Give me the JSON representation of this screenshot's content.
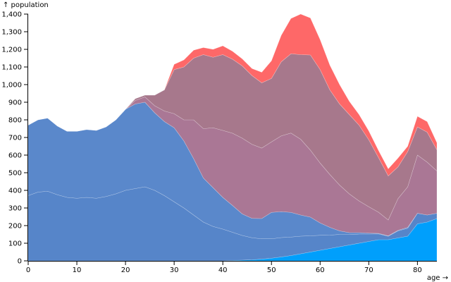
{
  "chart_data": {
    "type": "area",
    "stacked": true,
    "xlabel": "age →",
    "ylabel": "↑ population",
    "xlim": [
      0,
      84
    ],
    "ylim": [
      0,
      1400
    ],
    "x_ticks": [
      0,
      10,
      20,
      30,
      40,
      50,
      60,
      70,
      80
    ],
    "y_ticks": [
      0,
      100,
      200,
      300,
      400,
      500,
      600,
      700,
      800,
      900,
      1000,
      1100,
      1200,
      1300,
      1400
    ],
    "y_tick_labels": [
      "0",
      "100",
      "200",
      "300",
      "400",
      "500",
      "600",
      "700",
      "800",
      "900",
      "1,000",
      "1,100",
      "1,200",
      "1,300",
      "1,400"
    ],
    "x": [
      0,
      2,
      4,
      6,
      8,
      10,
      12,
      14,
      16,
      18,
      20,
      22,
      24,
      26,
      28,
      30,
      32,
      34,
      36,
      38,
      40,
      42,
      44,
      46,
      48,
      50,
      52,
      54,
      56,
      58,
      60,
      62,
      64,
      66,
      68,
      70,
      72,
      74,
      76,
      78,
      80,
      82,
      84
    ],
    "series": [
      {
        "color": "#009ffc",
        "values": [
          0,
          0,
          0,
          0,
          0,
          0,
          0,
          0,
          0,
          0,
          0,
          0,
          0,
          0,
          0,
          0,
          0,
          0,
          0,
          0,
          0,
          2,
          4,
          6,
          10,
          15,
          22,
          30,
          40,
          50,
          60,
          70,
          80,
          90,
          100,
          110,
          120,
          120,
          130,
          140,
          210,
          220,
          240
        ]
      },
      {
        "color": "#5685c9",
        "values": [
          370,
          390,
          395,
          375,
          360,
          355,
          360,
          355,
          365,
          380,
          400,
          410,
          420,
          400,
          370,
          335,
          300,
          260,
          220,
          195,
          180,
          160,
          140,
          125,
          115,
          110,
          110,
          105,
          100,
          92,
          85,
          76,
          70,
          60,
          52,
          42,
          33,
          20,
          40,
          45,
          60,
          40,
          30
        ]
      },
      {
        "color": "#5a88cb",
        "values": [
          400,
          410,
          415,
          390,
          375,
          380,
          385,
          385,
          395,
          420,
          460,
          480,
          480,
          440,
          420,
          420,
          380,
          320,
          250,
          220,
          180,
          152,
          122,
          110,
          115,
          150,
          147,
          140,
          120,
          106,
          70,
          44,
          20,
          10,
          8,
          5,
          3,
          2,
          3,
          5,
          0,
          0,
          0
        ]
      },
      {
        "color": "#aa7795",
        "values": [
          0,
          0,
          0,
          0,
          0,
          0,
          0,
          0,
          0,
          0,
          0,
          20,
          30,
          40,
          60,
          80,
          120,
          220,
          280,
          340,
          380,
          410,
          430,
          420,
          400,
          400,
          430,
          450,
          430,
          380,
          340,
          300,
          260,
          220,
          180,
          150,
          120,
          90,
          180,
          230,
          330,
          300,
          240
        ]
      },
      {
        "color": "#a7788c",
        "values": [
          0,
          0,
          0,
          0,
          0,
          0,
          0,
          0,
          0,
          0,
          0,
          10,
          10,
          60,
          120,
          250,
          300,
          350,
          420,
          400,
          430,
          420,
          410,
          390,
          370,
          360,
          420,
          450,
          480,
          540,
          530,
          480,
          460,
          450,
          430,
          380,
          310,
          250,
          180,
          200,
          160,
          170,
          120
        ]
      },
      {
        "color": "#fe6868",
        "values": [
          0,
          0,
          0,
          0,
          0,
          0,
          0,
          0,
          0,
          0,
          0,
          0,
          0,
          0,
          0,
          30,
          40,
          45,
          40,
          45,
          50,
          45,
          40,
          40,
          60,
          100,
          150,
          200,
          230,
          210,
          170,
          140,
          110,
          75,
          60,
          50,
          40,
          40,
          50,
          30,
          60,
          60,
          40
        ]
      }
    ]
  }
}
